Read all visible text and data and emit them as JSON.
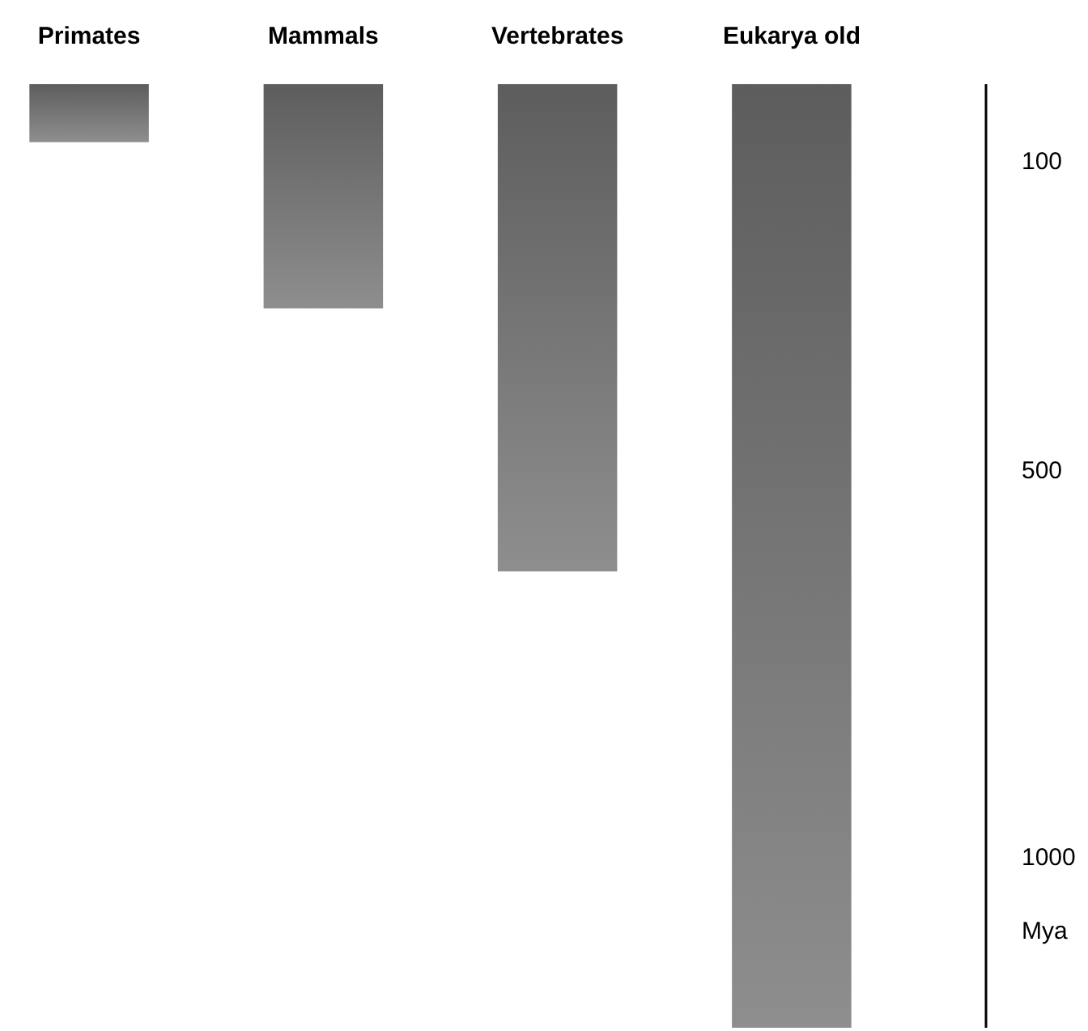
{
  "chart_data": {
    "type": "bar",
    "categories": [
      "Primates",
      "Mammals",
      "Vertebrates",
      "Eukarya old"
    ],
    "values": [
      75,
      290,
      630,
      1220
    ],
    "base": [
      0,
      0,
      0,
      0
    ],
    "color": "#777777",
    "ylabel": "Mya",
    "ylim": [
      1220,
      0
    ],
    "yticks": [
      100,
      500,
      1000
    ],
    "grid": false
  }
}
